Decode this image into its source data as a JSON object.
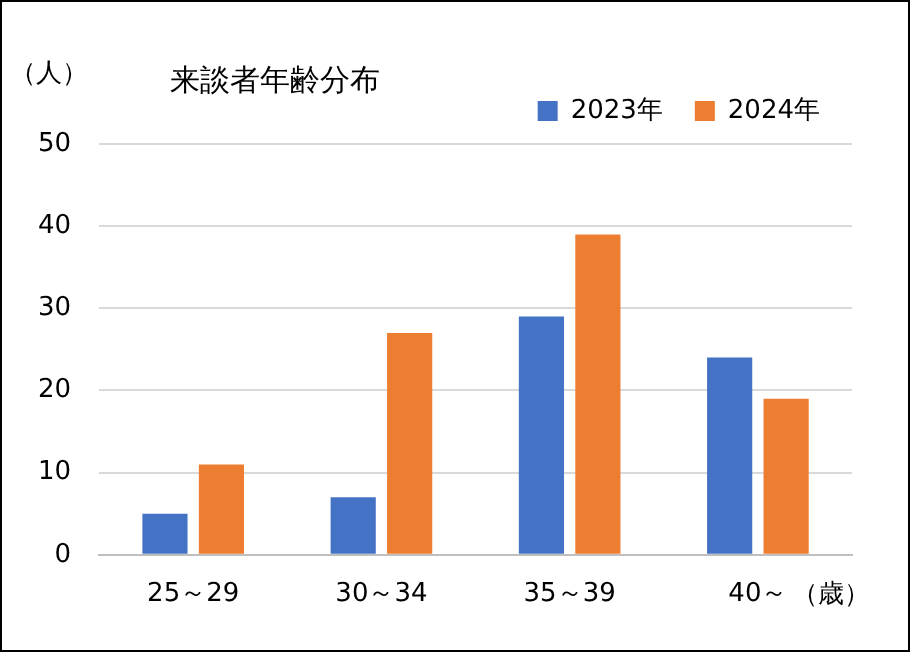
{
  "chart_data": {
    "type": "bar",
    "title": "来談者年齢分布",
    "ylabel": "（人）",
    "xlabel": "（歳）",
    "categories": [
      "25～29",
      "30～34",
      "35～39",
      "40～"
    ],
    "series": [
      {
        "name": "2023年",
        "color": "#4472c4",
        "values": [
          5,
          7,
          29,
          24
        ]
      },
      {
        "name": "2024年",
        "color": "#ed7d31",
        "values": [
          11,
          27,
          39,
          19
        ]
      }
    ],
    "ylim": [
      0,
      50
    ],
    "yticks": [
      0,
      10,
      20,
      30,
      40,
      50
    ],
    "grid": "y",
    "legend": "top right"
  }
}
